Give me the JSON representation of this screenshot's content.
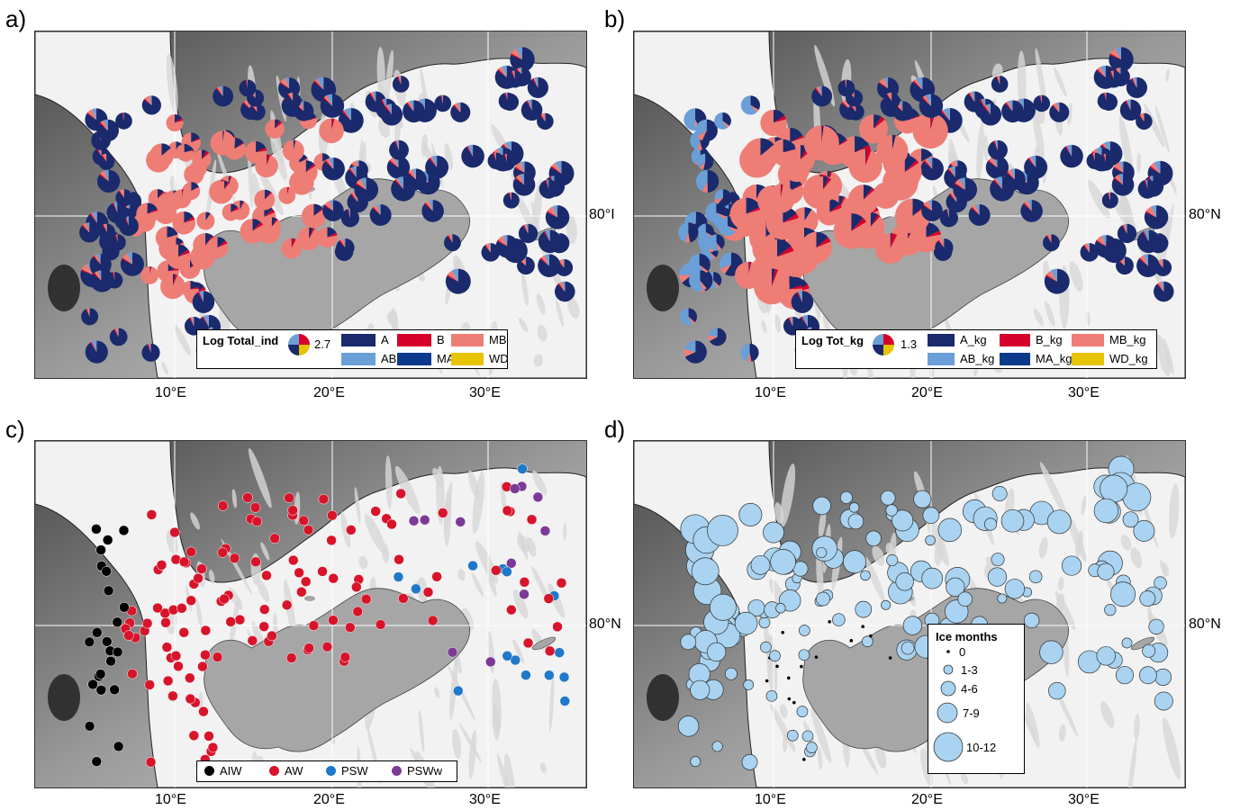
{
  "panels": {
    "a": {
      "letter": "a)",
      "lat_label": "80°I",
      "ticks": [
        "10°E",
        "20°E",
        "30°E"
      ],
      "legend": {
        "title": "Log Total_ind",
        "size_value": "2.7",
        "items": [
          {
            "label": "A",
            "color": "#1a2a6c"
          },
          {
            "label": "B",
            "color": "#d7002a"
          },
          {
            "label": "MB",
            "color": "#ee7d76"
          },
          {
            "label": "AB",
            "color": "#6a9fd8"
          },
          {
            "label": "MA",
            "color": "#0b3a8c"
          },
          {
            "label": "WD",
            "color": "#e8c300"
          }
        ]
      }
    },
    "b": {
      "letter": "b)",
      "lat_label": "80°N",
      "ticks": [
        "10°E",
        "20°E",
        "30°E"
      ],
      "legend": {
        "title": "Log Tot_kg",
        "size_value": "1.3",
        "items": [
          {
            "label": "A_kg",
            "color": "#1a2a6c"
          },
          {
            "label": "B_kg",
            "color": "#d7002a"
          },
          {
            "label": "MB_kg",
            "color": "#ee7d76"
          },
          {
            "label": "AB_kg",
            "color": "#6a9fd8"
          },
          {
            "label": "MA_kg",
            "color": "#0b3a8c"
          },
          {
            "label": "WD_kg",
            "color": "#e8c300"
          }
        ]
      }
    },
    "c": {
      "letter": "c)",
      "lat_label": "80°N",
      "ticks": [
        "10°E",
        "20°E",
        "30°E"
      ],
      "legend": {
        "items": [
          {
            "label": "AIW",
            "color": "#000000"
          },
          {
            "label": "AW",
            "color": "#d7142a"
          },
          {
            "label": "PSW",
            "color": "#1f78c8"
          },
          {
            "label": "PSWw",
            "color": "#7b3a96"
          }
        ]
      }
    },
    "d": {
      "letter": "d)",
      "lat_label": "80°N",
      "ticks": [
        "10°E",
        "20°E",
        "30°E"
      ],
      "legend": {
        "title": "Ice months",
        "items": [
          "0",
          "1-3",
          "4-6",
          "7-9",
          "10-12"
        ],
        "color": "#a9d3f0"
      }
    }
  }
}
